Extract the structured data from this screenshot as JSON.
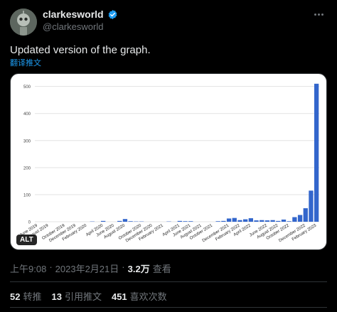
{
  "author": {
    "display_name": "clarkesworld",
    "handle": "@clarkesworld",
    "verified_color": "#1d9bf0",
    "avatar_icon": "robot-avatar"
  },
  "tweet": {
    "text": "Updated version of the graph.",
    "translate_label": "翻译推文",
    "alt_label": "ALT"
  },
  "meta": {
    "time": "上午9:08",
    "separator": "·",
    "date": "2023年2月21日",
    "views_count": "3.2万",
    "views_label": "查看"
  },
  "stats": {
    "retweets_count": "52",
    "retweets_label": "转推",
    "quotes_count": "13",
    "quotes_label": "引用推文",
    "likes_count": "451",
    "likes_label": "喜欢次数"
  },
  "chart_data": {
    "type": "bar",
    "bar_color": "#3366cc",
    "ylim": [
      0,
      520
    ],
    "yticks": [
      0,
      100,
      200,
      300,
      400,
      500
    ],
    "grid": true,
    "tick_labels": [
      "June 2019",
      "August 2019",
      "October 2019",
      "December 2019",
      "February 2020",
      "April 2020",
      "June 2020",
      "August 2020",
      "October 2020",
      "December 2020",
      "February 2021",
      "April 2021",
      "June 2021",
      "August 2021",
      "October 2021",
      "December 2021",
      "February 2022",
      "April 2022",
      "June 2022",
      "August 2022",
      "October 2022",
      "December 2022",
      "February 2023"
    ],
    "values": [
      0,
      0,
      0,
      0,
      0,
      0,
      0,
      0,
      0,
      0,
      1,
      0,
      3,
      0,
      0,
      3,
      10,
      2,
      1,
      1,
      0,
      0,
      0,
      0,
      1,
      0,
      3,
      2,
      2,
      0,
      0,
      0,
      0,
      2,
      3,
      12,
      14,
      6,
      9,
      13,
      5,
      6,
      5,
      6,
      3,
      8,
      2,
      17,
      25,
      50,
      115,
      510
    ]
  }
}
